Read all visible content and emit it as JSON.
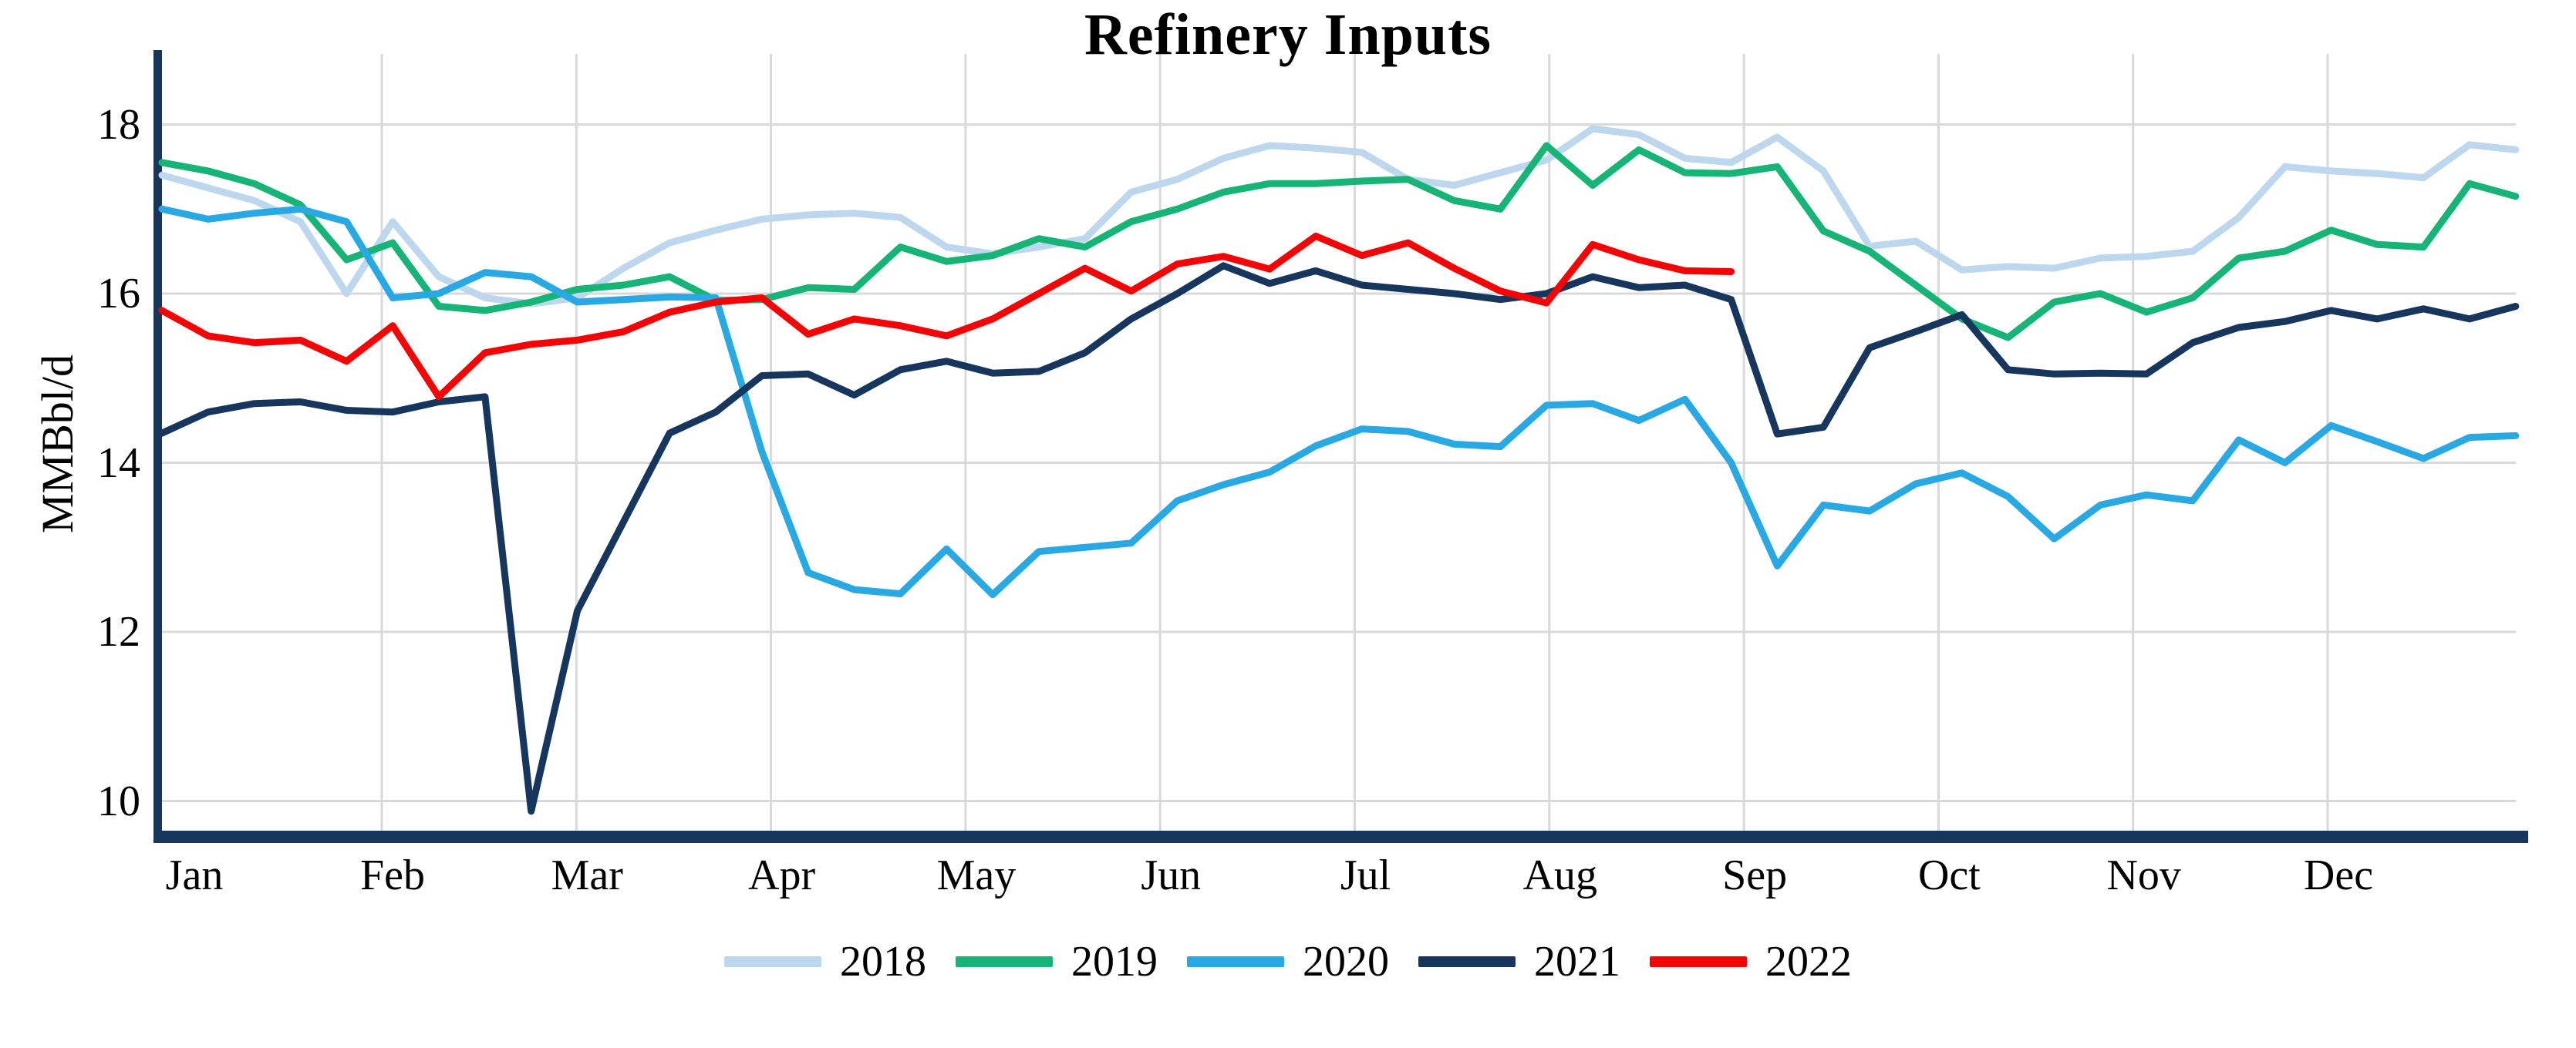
{
  "chart_data": {
    "type": "line",
    "title": "Refinery Inputs",
    "ylabel": "MMBbl/d",
    "xlabel": "",
    "y_ticks": [
      18,
      16,
      14,
      12,
      10
    ],
    "ylim": [
      9.6,
      18.8
    ],
    "x_tick_labels": [
      "Jan",
      "Feb",
      "Mar",
      "Apr",
      "May",
      "Jun",
      "Jul",
      "Aug",
      "Sep",
      "Oct",
      "Nov",
      "Dec"
    ],
    "x_resolution": "weekly (up to 52 points per series)",
    "grid": {
      "horizontal": true,
      "vertical_monthly": true,
      "color": "#D9D9D9"
    },
    "axis_color": "#17365D",
    "legend_position": "bottom-center",
    "series": [
      {
        "name": "2018",
        "color": "#BDD7EE",
        "values": [
          17.4,
          17.25,
          17.1,
          16.85,
          16.0,
          16.85,
          16.2,
          15.95,
          15.88,
          15.95,
          16.3,
          16.6,
          16.75,
          16.88,
          16.93,
          16.95,
          16.9,
          16.55,
          16.47,
          16.55,
          16.65,
          17.2,
          17.35,
          17.6,
          17.75,
          17.72,
          17.67,
          17.35,
          17.28,
          17.43,
          17.58,
          17.95,
          17.88,
          17.6,
          17.55,
          17.85,
          17.45,
          16.56,
          16.62,
          16.28,
          16.32,
          16.3,
          16.42,
          16.44,
          16.5,
          16.9,
          17.5,
          17.45,
          17.42,
          17.37,
          17.76,
          17.7
        ]
      },
      {
        "name": "2019",
        "color": "#16B477",
        "values": [
          17.55,
          17.45,
          17.3,
          17.05,
          16.4,
          16.6,
          15.85,
          15.8,
          15.9,
          16.05,
          16.1,
          16.2,
          15.92,
          15.93,
          16.07,
          16.05,
          16.55,
          16.38,
          16.45,
          16.65,
          16.55,
          16.85,
          17.0,
          17.2,
          17.3,
          17.3,
          17.33,
          17.35,
          17.1,
          17.0,
          17.75,
          17.28,
          17.7,
          17.43,
          17.42,
          17.5,
          16.74,
          16.5,
          16.1,
          15.7,
          15.48,
          15.9,
          16.0,
          15.78,
          15.95,
          16.42,
          16.5,
          16.75,
          16.58,
          16.55,
          17.3,
          17.15
        ]
      },
      {
        "name": "2020",
        "color": "#29A9E3",
        "values": [
          17.0,
          16.88,
          16.95,
          17.0,
          16.85,
          15.95,
          16.0,
          16.25,
          16.2,
          15.9,
          15.93,
          15.96,
          15.95,
          14.13,
          12.7,
          12.5,
          12.45,
          12.98,
          12.44,
          12.95,
          13.0,
          13.05,
          13.55,
          13.74,
          13.89,
          14.2,
          14.4,
          14.37,
          14.22,
          14.19,
          14.68,
          14.7,
          14.5,
          14.75,
          14.0,
          12.78,
          13.5,
          13.43,
          13.75,
          13.88,
          13.6,
          13.1,
          13.5,
          13.62,
          13.55,
          14.27,
          14.0,
          14.44,
          14.25,
          14.05,
          14.3,
          14.32
        ]
      },
      {
        "name": "2021",
        "color": "#17365D",
        "values": [
          14.35,
          14.6,
          14.7,
          14.72,
          14.62,
          14.6,
          14.72,
          14.78,
          9.88,
          12.25,
          13.3,
          14.35,
          14.6,
          15.03,
          15.05,
          14.8,
          15.1,
          15.2,
          15.06,
          15.08,
          15.3,
          15.7,
          16.0,
          16.33,
          16.12,
          16.27,
          16.1,
          16.05,
          16.0,
          15.93,
          16.0,
          16.2,
          16.07,
          16.1,
          15.93,
          14.34,
          14.42,
          15.36,
          15.55,
          15.75,
          15.1,
          15.05,
          15.06,
          15.05,
          15.42,
          15.6,
          15.67,
          15.8,
          15.7,
          15.82,
          15.7,
          15.85
        ]
      },
      {
        "name": "2022",
        "color": "#F40505",
        "values": [
          15.8,
          15.5,
          15.42,
          15.45,
          15.2,
          15.62,
          14.78,
          15.3,
          15.4,
          15.45,
          15.55,
          15.78,
          15.9,
          15.95,
          15.52,
          15.7,
          15.62,
          15.5,
          15.7,
          16.0,
          16.3,
          16.03,
          16.35,
          16.44,
          16.29,
          16.68,
          16.45,
          16.6,
          16.3,
          16.03,
          15.89,
          16.58,
          16.4,
          16.27,
          16.26
        ]
      }
    ]
  }
}
